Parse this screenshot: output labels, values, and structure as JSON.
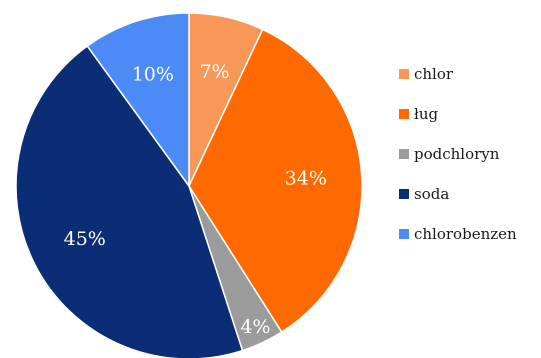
{
  "chart_data": {
    "type": "pie",
    "title": "",
    "slices": [
      {
        "label": "chlor",
        "value": 7,
        "display": "7%",
        "color": "#F79858"
      },
      {
        "label": "ług",
        "value": 34,
        "display": "34%",
        "color": "#FF6A00"
      },
      {
        "label": "podchloryn",
        "value": 4,
        "display": "4%",
        "color": "#9B9B9B"
      },
      {
        "label": "soda",
        "value": 45,
        "display": "45%",
        "color": "#0B2D75"
      },
      {
        "label": "chlorobenzen",
        "value": 10,
        "display": "10%",
        "color": "#4C8BF5"
      }
    ],
    "start_angle_deg": 0,
    "direction": "clockwise",
    "legend_position": "right"
  }
}
